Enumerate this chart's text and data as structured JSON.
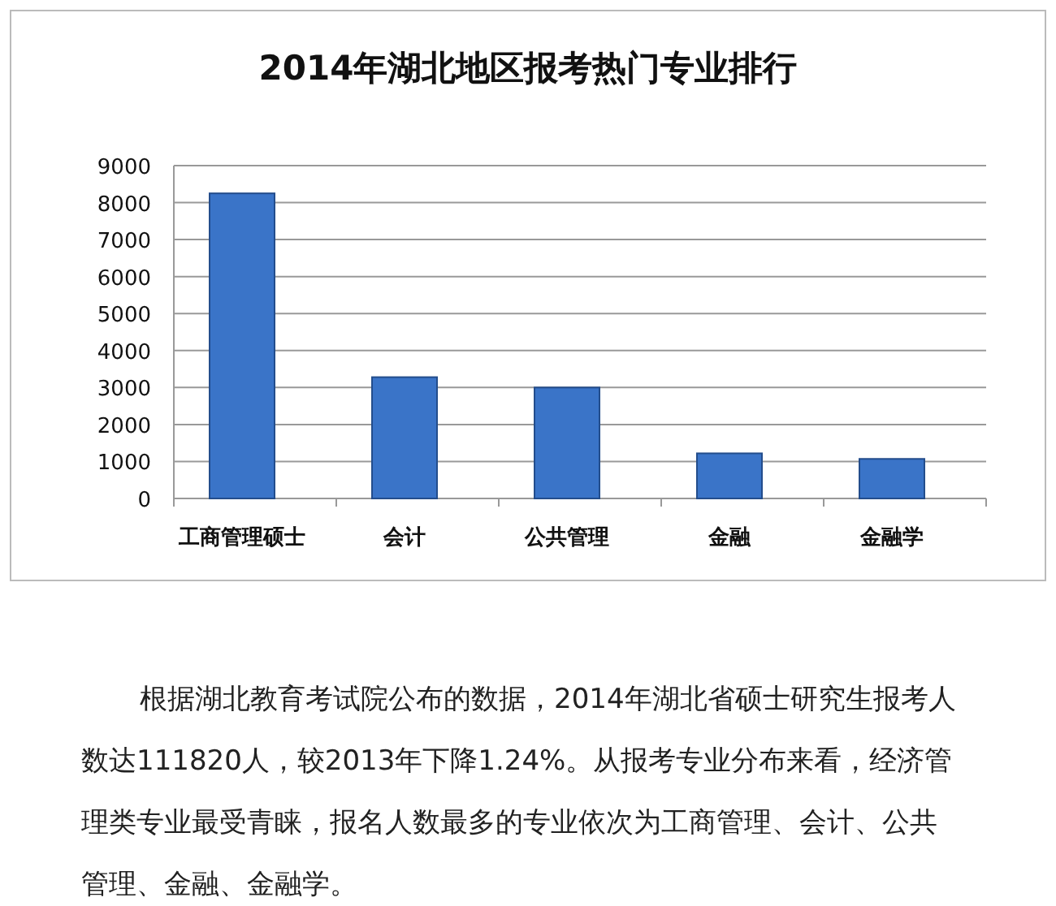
{
  "chart_data": {
    "type": "bar",
    "title": "2014年湖北地区报考热门专业排行",
    "categories": [
      "工商管理硕士",
      "会计",
      "公共管理",
      "金融",
      "金融学"
    ],
    "values": [
      8250,
      3280,
      3000,
      1220,
      1070
    ],
    "color": "#3a74c8",
    "ylim": [
      0,
      9000
    ],
    "yticks": [
      0,
      1000,
      2000,
      3000,
      4000,
      5000,
      6000,
      7000,
      8000,
      9000
    ],
    "grid": "y",
    "annotations": [
      "根据湖北教育考试院公布的数据，2014年湖北省硕士研究生报考人数达111820人，较2013年下降1.24%。从报考专业分布来看，经济管理类专业最受青睐，报名人数最多的专业依次为工商管理、会计、公共管理、金融、金融学。"
    ]
  }
}
